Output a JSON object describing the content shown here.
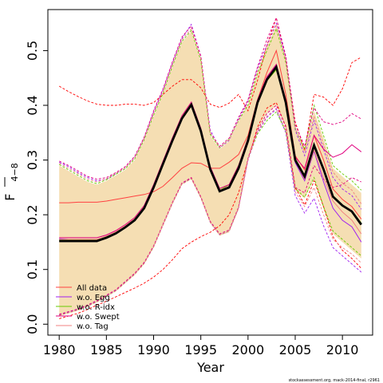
{
  "chart_data": {
    "type": "line",
    "xlabel": "Year",
    "ylabel_main": "F",
    "ylabel_sub": "4−8",
    "xlim": [
      1978.8,
      2013.2
    ],
    "ylim": [
      -0.02,
      0.575
    ],
    "x_ticks": [
      1980,
      1985,
      1990,
      1995,
      2000,
      2005,
      2010
    ],
    "y_ticks": [
      0.0,
      0.1,
      0.2,
      0.3,
      0.4,
      0.5
    ],
    "y_tick_labels": [
      "0.0",
      "0.1",
      "0.2",
      "0.3",
      "0.4",
      "0.5"
    ],
    "x": [
      1980,
      1981,
      1982,
      1983,
      1984,
      1985,
      1986,
      1987,
      1988,
      1989,
      1990,
      1991,
      1992,
      1993,
      1994,
      1995,
      1996,
      1997,
      1998,
      1999,
      2000,
      2001,
      2002,
      2003,
      2004,
      2005,
      2006,
      2007,
      2008,
      2009,
      2010,
      2011,
      2012
    ],
    "band": {
      "color": "#f5deb3",
      "lower": [
        0.015,
        0.02,
        0.025,
        0.032,
        0.04,
        0.05,
        0.06,
        0.075,
        0.09,
        0.11,
        0.14,
        0.18,
        0.22,
        0.255,
        0.265,
        0.23,
        0.185,
        0.162,
        0.168,
        0.21,
        0.3,
        0.355,
        0.385,
        0.4,
        0.36,
        0.245,
        0.23,
        0.265,
        0.21,
        0.165,
        0.15,
        0.135,
        0.12
      ],
      "upper": [
        0.29,
        0.28,
        0.27,
        0.26,
        0.255,
        0.262,
        0.272,
        0.282,
        0.3,
        0.335,
        0.38,
        0.42,
        0.47,
        0.515,
        0.535,
        0.48,
        0.345,
        0.32,
        0.335,
        0.37,
        0.4,
        0.46,
        0.505,
        0.545,
        0.48,
        0.36,
        0.32,
        0.39,
        0.34,
        0.285,
        0.27,
        0.255,
        0.24
      ]
    },
    "baseline": {
      "color": "#000000",
      "values": [
        0.152,
        0.152,
        0.152,
        0.152,
        0.152,
        0.158,
        0.166,
        0.177,
        0.19,
        0.212,
        0.25,
        0.293,
        0.336,
        0.376,
        0.401,
        0.353,
        0.283,
        0.243,
        0.25,
        0.285,
        0.335,
        0.405,
        0.447,
        0.47,
        0.405,
        0.3,
        0.27,
        0.327,
        0.283,
        0.233,
        0.217,
        0.206,
        0.182
      ]
    },
    "series": [
      {
        "name": "All data",
        "color": "#ff4040",
        "dash": "solid",
        "values": [
          0.222,
          0.222,
          0.223,
          0.223,
          0.223,
          0.225,
          0.228,
          0.231,
          0.234,
          0.237,
          0.242,
          0.252,
          0.268,
          0.285,
          0.295,
          0.294,
          0.285,
          0.285,
          0.296,
          0.31,
          0.345,
          0.41,
          0.46,
          0.5,
          0.42,
          0.308,
          0.282,
          0.345,
          0.3,
          0.247,
          0.228,
          0.215,
          0.192
        ]
      },
      {
        "name": "w.o. Egg",
        "color": "#a020f0",
        "dash": "solid",
        "values": [
          0.156,
          0.155,
          0.155,
          0.155,
          0.155,
          0.16,
          0.168,
          0.179,
          0.192,
          0.214,
          0.252,
          0.296,
          0.34,
          0.38,
          0.405,
          0.356,
          0.285,
          0.245,
          0.252,
          0.287,
          0.337,
          0.408,
          0.45,
          0.473,
          0.407,
          0.295,
          0.262,
          0.316,
          0.26,
          0.212,
          0.19,
          0.178,
          0.15
        ]
      },
      {
        "name": "w.o. R-idx",
        "color": "#66cc00",
        "dash": "solid",
        "values": [
          0.154,
          0.154,
          0.154,
          0.154,
          0.154,
          0.16,
          0.168,
          0.179,
          0.192,
          0.214,
          0.252,
          0.295,
          0.338,
          0.378,
          0.403,
          0.355,
          0.285,
          0.245,
          0.255,
          0.29,
          0.34,
          0.405,
          0.445,
          0.465,
          0.402,
          0.298,
          0.27,
          0.33,
          0.285,
          0.235,
          0.218,
          0.206,
          0.185
        ]
      },
      {
        "name": "w.o. Swept",
        "color": "#e0007f",
        "dash": "solid",
        "values": [
          0.158,
          0.158,
          0.158,
          0.158,
          0.158,
          0.163,
          0.171,
          0.182,
          0.195,
          0.217,
          0.255,
          0.298,
          0.341,
          0.381,
          0.406,
          0.358,
          0.288,
          0.248,
          0.255,
          0.29,
          0.34,
          0.41,
          0.452,
          0.475,
          0.41,
          0.305,
          0.285,
          0.345,
          0.32,
          0.305,
          0.312,
          0.328,
          0.315
        ]
      },
      {
        "name": "w.o. Tag",
        "color": "#f08080",
        "dash": "solid",
        "values": [
          0.155,
          0.155,
          0.155,
          0.155,
          0.155,
          0.161,
          0.169,
          0.18,
          0.193,
          0.215,
          0.253,
          0.296,
          0.339,
          0.379,
          0.404,
          0.355,
          0.285,
          0.245,
          0.252,
          0.287,
          0.337,
          0.407,
          0.449,
          0.472,
          0.406,
          0.298,
          0.265,
          0.318,
          0.268,
          0.225,
          0.205,
          0.19,
          0.165
        ]
      }
    ],
    "interval_lines": [
      {
        "color": "#ff0000",
        "upper": [
          0.435,
          0.425,
          0.416,
          0.408,
          0.402,
          0.4,
          0.4,
          0.402,
          0.402,
          0.4,
          0.405,
          0.42,
          0.435,
          0.447,
          0.447,
          0.432,
          0.402,
          0.396,
          0.404,
          0.42,
          0.39,
          0.445,
          0.51,
          0.56,
          0.485,
          0.37,
          0.318,
          0.42,
          0.415,
          0.4,
          0.43,
          0.478,
          0.488
        ],
        "lower": [
          0.01,
          0.015,
          0.02,
          0.027,
          0.035,
          0.042,
          0.05,
          0.058,
          0.066,
          0.075,
          0.086,
          0.1,
          0.118,
          0.138,
          0.15,
          0.16,
          0.168,
          0.18,
          0.2,
          0.24,
          0.3,
          0.36,
          0.395,
          0.405,
          0.36,
          0.25,
          0.218,
          0.262,
          0.215,
          0.16,
          0.135,
          0.12,
          0.102
        ]
      },
      {
        "color": "#a020f0",
        "upper": [
          0.296,
          0.288,
          0.277,
          0.268,
          0.262,
          0.265,
          0.275,
          0.286,
          0.305,
          0.34,
          0.388,
          0.428,
          0.478,
          0.522,
          0.548,
          0.49,
          0.355,
          0.322,
          0.336,
          0.375,
          0.408,
          0.468,
          0.51,
          0.55,
          0.487,
          0.355,
          0.308,
          0.372,
          0.32,
          0.268,
          0.247,
          0.235,
          0.21
        ],
        "lower": [
          0.017,
          0.022,
          0.027,
          0.034,
          0.042,
          0.052,
          0.062,
          0.077,
          0.092,
          0.112,
          0.142,
          0.182,
          0.222,
          0.257,
          0.267,
          0.232,
          0.186,
          0.163,
          0.17,
          0.212,
          0.3,
          0.35,
          0.378,
          0.393,
          0.35,
          0.235,
          0.203,
          0.23,
          0.18,
          0.14,
          0.125,
          0.11,
          0.095
        ]
      },
      {
        "color": "#66cc00",
        "upper": [
          0.292,
          0.282,
          0.272,
          0.262,
          0.257,
          0.264,
          0.274,
          0.284,
          0.302,
          0.337,
          0.382,
          0.422,
          0.472,
          0.517,
          0.537,
          0.482,
          0.347,
          0.322,
          0.338,
          0.372,
          0.4,
          0.458,
          0.5,
          0.54,
          0.478,
          0.358,
          0.32,
          0.4,
          0.345,
          0.29,
          0.275,
          0.262,
          0.245
        ],
        "lower": [
          0.016,
          0.021,
          0.026,
          0.033,
          0.041,
          0.051,
          0.061,
          0.076,
          0.091,
          0.111,
          0.141,
          0.181,
          0.221,
          0.256,
          0.266,
          0.231,
          0.186,
          0.163,
          0.17,
          0.212,
          0.302,
          0.348,
          0.372,
          0.388,
          0.352,
          0.248,
          0.232,
          0.268,
          0.215,
          0.17,
          0.155,
          0.14,
          0.125
        ]
      },
      {
        "color": "#e0007f",
        "upper": [
          0.298,
          0.29,
          0.28,
          0.27,
          0.265,
          0.268,
          0.277,
          0.288,
          0.307,
          0.342,
          0.39,
          0.43,
          0.48,
          0.525,
          0.545,
          0.49,
          0.35,
          0.325,
          0.34,
          0.378,
          0.41,
          0.47,
          0.52,
          0.56,
          0.49,
          0.365,
          0.325,
          0.395,
          0.37,
          0.365,
          0.37,
          0.385,
          0.375
        ],
        "lower": [
          0.018,
          0.023,
          0.028,
          0.035,
          0.043,
          0.053,
          0.063,
          0.078,
          0.093,
          0.113,
          0.143,
          0.183,
          0.223,
          0.258,
          0.268,
          0.233,
          0.188,
          0.165,
          0.172,
          0.214,
          0.303,
          0.355,
          0.385,
          0.4,
          0.362,
          0.25,
          0.24,
          0.29,
          0.265,
          0.25,
          0.255,
          0.268,
          0.26
        ]
      },
      {
        "color": "#f08080",
        "upper": [
          0.294,
          0.285,
          0.275,
          0.265,
          0.26,
          0.266,
          0.276,
          0.286,
          0.304,
          0.339,
          0.385,
          0.425,
          0.475,
          0.52,
          0.54,
          0.485,
          0.35,
          0.323,
          0.337,
          0.373,
          0.405,
          0.463,
          0.507,
          0.548,
          0.483,
          0.36,
          0.315,
          0.38,
          0.328,
          0.278,
          0.258,
          0.245,
          0.22
        ],
        "lower": [
          0.016,
          0.021,
          0.026,
          0.033,
          0.041,
          0.051,
          0.061,
          0.076,
          0.091,
          0.111,
          0.141,
          0.181,
          0.221,
          0.256,
          0.266,
          0.231,
          0.186,
          0.163,
          0.17,
          0.212,
          0.301,
          0.352,
          0.38,
          0.395,
          0.355,
          0.242,
          0.215,
          0.25,
          0.2,
          0.155,
          0.14,
          0.128,
          0.112
        ]
      }
    ],
    "legend": {
      "position": "bottom-left"
    },
    "footer": "stockassessment.org, mack-2014-final, r2961"
  }
}
